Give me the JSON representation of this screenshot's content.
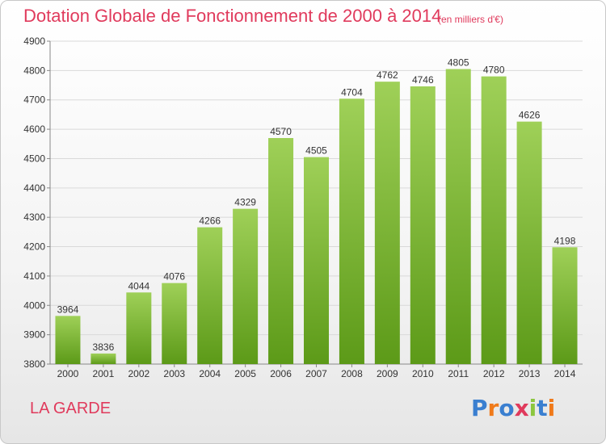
{
  "header": {
    "title": "Dotation Globale de Fonctionnement de 2000 à 2014",
    "unit_note": "(en milliers d'€)"
  },
  "commune": "LA GARDE",
  "logo": {
    "text": "Proxiti",
    "letters": [
      {
        "char": "P",
        "color": "#3a7fd0"
      },
      {
        "char": "r",
        "color": "#f07a1a"
      },
      {
        "char": "o",
        "color": "#3a7fd0"
      },
      {
        "char": "x",
        "color": "#e03a5c"
      },
      {
        "char": "i",
        "color": "#8cc63f"
      },
      {
        "char": "t",
        "color": "#3a7fd0"
      },
      {
        "char": "i",
        "color": "#f07a1a"
      }
    ]
  },
  "colors": {
    "bar_top": "#9fd058",
    "bar_bottom": "#5c9a18",
    "title": "#e03a5c",
    "grid": "#d9d9d9",
    "axis_text": "#333333"
  },
  "chart_data": {
    "type": "bar",
    "title": "Dotation Globale de Fonctionnement de 2000 à 2014",
    "xlabel": "",
    "ylabel": "",
    "ylim": [
      3800,
      4900
    ],
    "yticks": [
      3800,
      3900,
      4000,
      4100,
      4200,
      4300,
      4400,
      4500,
      4600,
      4700,
      4800,
      4900
    ],
    "grid": true,
    "categories": [
      "2000",
      "2001",
      "2002",
      "2003",
      "2004",
      "2005",
      "2006",
      "2007",
      "2008",
      "2009",
      "2010",
      "2011",
      "2012",
      "2013",
      "2014"
    ],
    "values": [
      3964,
      3836,
      4044,
      4076,
      4266,
      4329,
      4570,
      4505,
      4704,
      4762,
      4746,
      4805,
      4780,
      4626,
      4198
    ]
  }
}
